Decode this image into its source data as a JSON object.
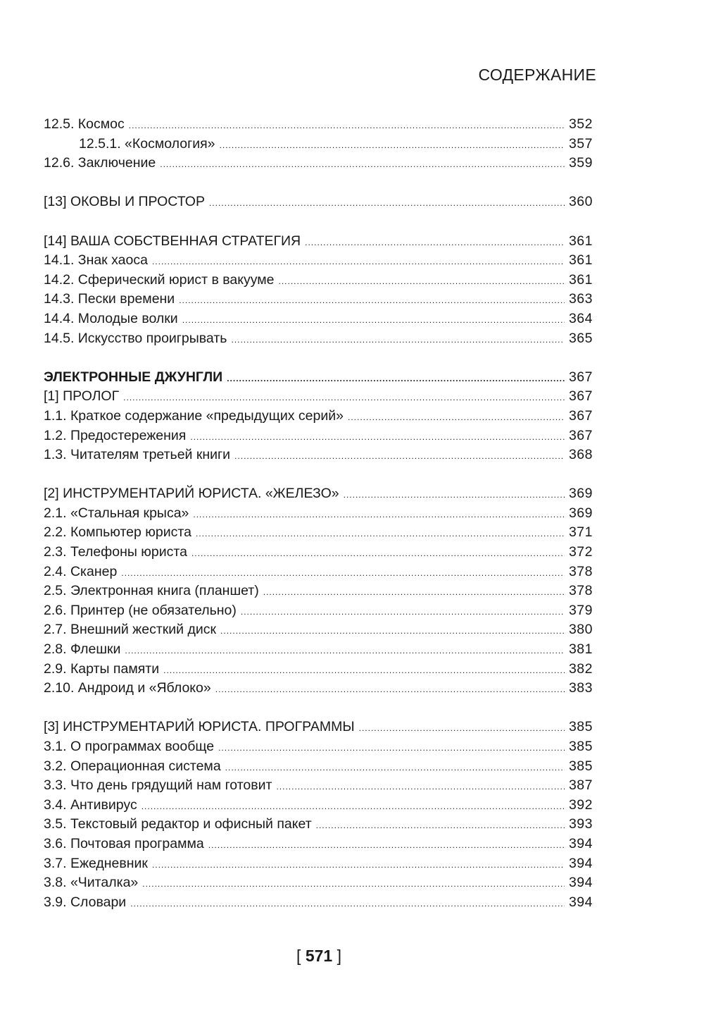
{
  "header": {
    "title": "СОДЕРЖАНИЕ"
  },
  "sections": [
    [
      {
        "title": "12.5. Космос",
        "page": "352"
      },
      {
        "title": "12.5.1. «Космология»",
        "page": "357",
        "indent": true
      },
      {
        "title": "12.6. Заключение",
        "page": "359"
      }
    ],
    [
      {
        "title": "[13] ОКОВЫ И ПРОСТОР",
        "page": "360"
      }
    ],
    [
      {
        "title": "[14] ВАША СОБСТВЕННАЯ СТРАТЕГИЯ",
        "page": "361"
      },
      {
        "title": "14.1. Знак хаоса",
        "page": "361"
      },
      {
        "title": "14.2. Сферический юрист в вакууме",
        "page": "361"
      },
      {
        "title": "14.3. Пески времени",
        "page": "363"
      },
      {
        "title": "14.4. Молодые волки",
        "page": "364"
      },
      {
        "title": "14.5. Искусство проигрывать",
        "page": "365"
      }
    ],
    [
      {
        "title": "ЭЛЕКТРОННЫЕ ДЖУНГЛИ",
        "page": "367",
        "bold": true
      },
      {
        "title": "[1] ПРОЛОГ",
        "page": "367"
      },
      {
        "title": "1.1. Краткое содержание «предыдущих серий»",
        "page": "367"
      },
      {
        "title": "1.2. Предостережения",
        "page": "367"
      },
      {
        "title": "1.3. Читателям третьей книги",
        "page": "368"
      }
    ],
    [
      {
        "title": "[2] ИНСТРУМЕНТАРИЙ ЮРИСТА. «ЖЕЛЕЗО»",
        "page": "369"
      },
      {
        "title": "2.1. «Стальная крыса»",
        "page": "369"
      },
      {
        "title": "2.2. Компьютер юриста",
        "page": "371"
      },
      {
        "title": "2.3. Телефоны юриста",
        "page": "372"
      },
      {
        "title": "2.4. Сканер",
        "page": "378"
      },
      {
        "title": "2.5. Электронная книга (планшет)",
        "page": "378"
      },
      {
        "title": "2.6. Принтер (не обязательно)",
        "page": "379"
      },
      {
        "title": "2.7. Внешний жесткий диск",
        "page": "380"
      },
      {
        "title": "2.8. Флешки",
        "page": "381"
      },
      {
        "title": "2.9. Карты памяти",
        "page": "382"
      },
      {
        "title": "2.10. Андроид и «Яблоко»",
        "page": "383"
      }
    ],
    [
      {
        "title": "[3] ИНСТРУМЕНТАРИЙ ЮРИСТА. ПРОГРАММЫ",
        "page": "385"
      },
      {
        "title": "3.1. О программах вообще",
        "page": "385"
      },
      {
        "title": "3.2. Операционная система",
        "page": "385"
      },
      {
        "title": "3.3. Что день грядущий нам готовит",
        "page": "387"
      },
      {
        "title": "3.4. Антивирус",
        "page": "392"
      },
      {
        "title": "3.5. Текстовый редактор и офисный пакет",
        "page": "393"
      },
      {
        "title": "3.6. Почтовая программа",
        "page": "394"
      },
      {
        "title": "3.7. Ежедневник",
        "page": "394"
      },
      {
        "title": "3.8. «Читалка»",
        "page": "394"
      },
      {
        "title": "3.9. Словари",
        "page": "394"
      }
    ]
  ],
  "footer": {
    "open": "[",
    "page_number": "571",
    "close": "]"
  }
}
